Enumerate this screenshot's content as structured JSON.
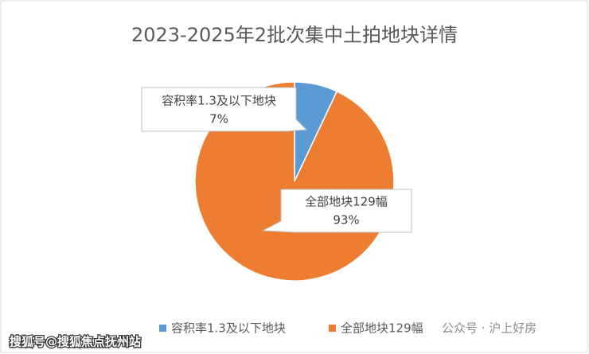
{
  "chart_data": {
    "type": "pie",
    "title": "2023-2025年2批次集中土拍地块详情",
    "categories": [
      "容积率1.3及以下地块",
      "全部地块129幅"
    ],
    "values": [
      7,
      93
    ],
    "value_labels": [
      "7%",
      "93%"
    ],
    "colors": [
      "#5b9bd5",
      "#ed7d31"
    ],
    "legend": "bottom",
    "watermarks": [
      "搜狐号@搜狐焦点抚州站",
      "公众号 · 沪上好房"
    ]
  }
}
